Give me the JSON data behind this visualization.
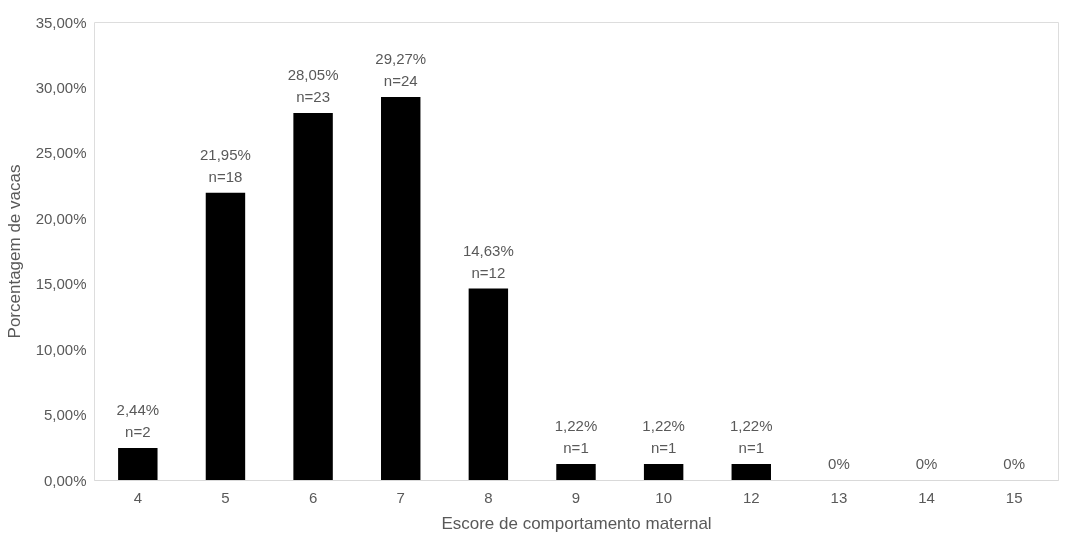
{
  "chart_data": {
    "type": "bar",
    "xlabel": "Escore de comportamento maternal",
    "ylabel": "Porcentagem de vacas",
    "categories": [
      "4",
      "5",
      "6",
      "7",
      "8",
      "9",
      "10",
      "12",
      "13",
      "14",
      "15"
    ],
    "values": [
      2.44,
      21.95,
      28.05,
      29.27,
      14.63,
      1.22,
      1.22,
      1.22,
      0,
      0,
      0
    ],
    "value_labels": [
      "2,44%\nn=2",
      "21,95%\nn=18",
      "28,05%\nn=23",
      "29,27%\nn=24",
      "14,63%\nn=12",
      "1,22%\nn=1",
      "1,22%\nn=1",
      "1,22%\nn=1",
      "0%",
      "0%",
      "0%"
    ],
    "color": "#000000",
    "ylim": [
      0,
      35
    ],
    "yticks": [
      {
        "value": 0,
        "label": "0,00%"
      },
      {
        "value": 5,
        "label": "5,00%"
      },
      {
        "value": 10,
        "label": "10,00%"
      },
      {
        "value": 15,
        "label": "15,00%"
      },
      {
        "value": 20,
        "label": "20,00%"
      },
      {
        "value": 25,
        "label": "25,00%"
      },
      {
        "value": 30,
        "label": "30,00%"
      },
      {
        "value": 35,
        "label": "35,00%"
      }
    ],
    "grid": false
  }
}
